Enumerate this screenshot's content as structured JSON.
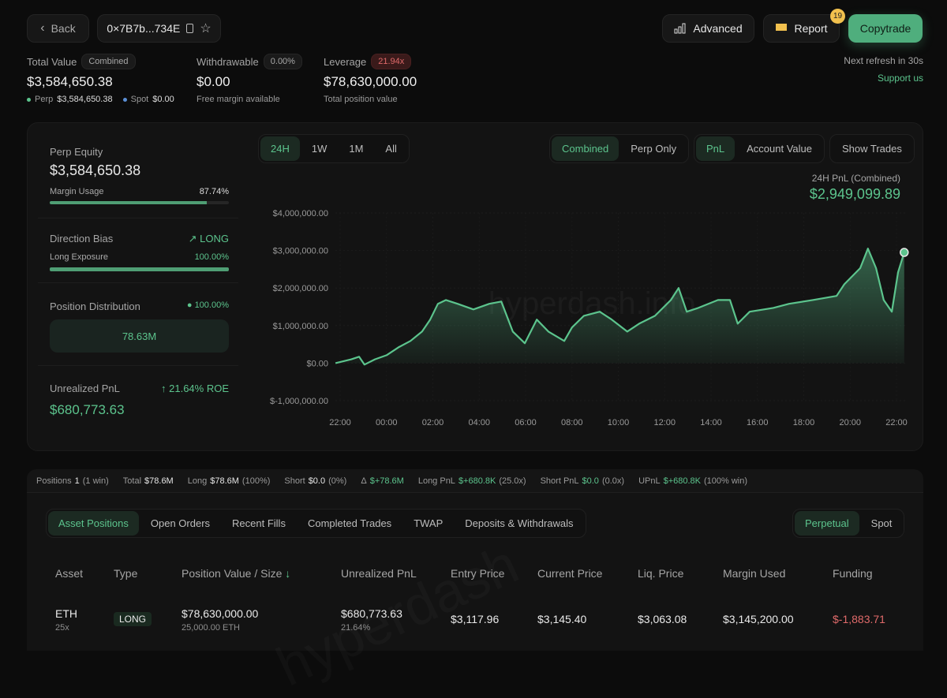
{
  "header": {
    "back_label": "Back",
    "address": "0×7B7b...734E",
    "advanced_label": "Advanced",
    "report_label": "Report",
    "report_badge": "19",
    "copytrade_label": "Copytrade",
    "refresh_text": "Next refresh in 30s",
    "support_label": "Support us"
  },
  "stats": {
    "total_value_label": "Total Value",
    "total_value_chip": "Combined",
    "total_value": "$3,584,650.38",
    "perp_label": "Perp",
    "perp_value": "$3,584,650.38",
    "spot_label": "Spot",
    "spot_value": "$0.00",
    "withdrawable_label": "Withdrawable",
    "withdrawable_chip": "0.00%",
    "withdrawable_value": "$0.00",
    "withdrawable_sub": "Free margin available",
    "leverage_label": "Leverage",
    "leverage_chip": "21.94x",
    "leverage_value": "$78,630,000.00",
    "leverage_sub": "Total position value"
  },
  "summary": {
    "perp_equity_label": "Perp Equity",
    "perp_equity": "$3,584,650.38",
    "margin_usage_label": "Margin Usage",
    "margin_usage": "87.74%",
    "margin_usage_fraction": 0.8774,
    "direction_bias_label": "Direction Bias",
    "direction_bias": "LONG",
    "long_exposure_label": "Long Exposure",
    "long_exposure": "100.00%",
    "long_exposure_fraction": 1.0,
    "position_distribution_label": "Position Distribution",
    "position_distribution_pct": "100.00%",
    "position_distribution_value": "78.63M",
    "unrealized_pnl_label": "Unrealized PnL",
    "roe": "21.64% ROE",
    "unrealized_pnl": "$680,773.63"
  },
  "chart_controls": {
    "timeframes": [
      "24H",
      "1W",
      "1M",
      "All"
    ],
    "active_timeframe": "24H",
    "modes": [
      "Combined",
      "Perp Only"
    ],
    "active_mode": "Combined",
    "metrics": [
      "PnL",
      "Account Value"
    ],
    "active_metric": "PnL",
    "show_trades_label": "Show Trades",
    "pnl_caption": "24H PnL (Combined)",
    "pnl_value": "$2,949,099.89",
    "watermark": "hyperdash.info"
  },
  "chart_data": {
    "type": "area",
    "xlabel": "",
    "ylabel": "",
    "ylim": [
      -1000000,
      4000000
    ],
    "y_ticks": [
      "$4,000,000.00",
      "$3,000,000.00",
      "$2,000,000.00",
      "$1,000,000.00",
      "$0.00",
      "$-1,000,000.00"
    ],
    "y_tick_values": [
      4000000,
      3000000,
      2000000,
      1000000,
      0,
      -1000000
    ],
    "x_ticks": [
      "22:00",
      "00:00",
      "02:00",
      "04:00",
      "06:00",
      "08:00",
      "10:00",
      "12:00",
      "14:00",
      "16:00",
      "18:00",
      "20:00",
      "22:00"
    ],
    "grid": true,
    "color": "#5cc48d",
    "x": [
      "21:48",
      "22:29",
      "22:49",
      "23:03",
      "23:30",
      "00:00",
      "00:31",
      "01:02",
      "01:32",
      "01:53",
      "02:13",
      "02:34",
      "03:04",
      "03:45",
      "04:26",
      "04:57",
      "05:27",
      "05:58",
      "06:29",
      "06:59",
      "07:40",
      "08:00",
      "08:31",
      "09:12",
      "09:43",
      "10:23",
      "10:54",
      "11:35",
      "12:16",
      "12:36",
      "12:57",
      "13:27",
      "14:18",
      "14:49",
      "15:09",
      "15:40",
      "16:41",
      "17:22",
      "18:23",
      "19:25",
      "19:45",
      "20:26",
      "20:46",
      "21:07",
      "21:27",
      "21:48",
      "22:04",
      "22:20"
    ],
    "values": [
      0,
      100000,
      170000,
      -40000,
      100000,
      210000,
      420000,
      590000,
      840000,
      1160000,
      1580000,
      1680000,
      1580000,
      1430000,
      1580000,
      1640000,
      840000,
      530000,
      1160000,
      840000,
      590000,
      950000,
      1260000,
      1370000,
      1160000,
      840000,
      1050000,
      1260000,
      1680000,
      2000000,
      1370000,
      1470000,
      1680000,
      1680000,
      1050000,
      1370000,
      1470000,
      1580000,
      1680000,
      1790000,
      2100000,
      2530000,
      3050000,
      2530000,
      1680000,
      1370000,
      2420000,
      2949099.89
    ]
  },
  "positions_bar": {
    "positions_label": "Positions",
    "positions": "1",
    "positions_note": "(1 win)",
    "total_label": "Total",
    "total": "$78.6M",
    "long_label": "Long",
    "long": "$78.6M",
    "long_note": "(100%)",
    "short_label": "Short",
    "short": "$0.0",
    "short_note": "(0%)",
    "delta_label": "Δ",
    "delta": "$+78.6M",
    "long_pnl_label": "Long PnL",
    "long_pnl": "$+680.8K",
    "long_pnl_note": "(25.0x)",
    "short_pnl_label": "Short PnL",
    "short_pnl": "$0.0",
    "short_pnl_note": "(0.0x)",
    "upnl_label": "UPnL",
    "upnl": "$+680.8K",
    "upnl_note": "(100% win)"
  },
  "tabs": [
    "Asset Positions",
    "Open Orders",
    "Recent Fills",
    "Completed Trades",
    "TWAP",
    "Deposits & Withdrawals"
  ],
  "active_tab": "Asset Positions",
  "market_toggle": [
    "Perpetual",
    "Spot"
  ],
  "active_market": "Perpetual",
  "table": {
    "watermark": "hyperdash",
    "columns": [
      "Asset",
      "Type",
      "Position Value / Size",
      "Unrealized PnL",
      "Entry Price",
      "Current Price",
      "Liq. Price",
      "Margin Used",
      "Funding"
    ],
    "rows": [
      {
        "asset": "ETH",
        "leverage": "25x",
        "type": "LONG",
        "position_value": "$78,630,000.00",
        "size": "25,000.00 ETH",
        "upnl": "$680,773.63",
        "upnl_pct": "21.64%",
        "entry": "$3,117.96",
        "current": "$3,145.40",
        "liq": "$3,063.08",
        "margin": "$3,145,200.00",
        "funding": "$-1,883.71"
      }
    ]
  }
}
